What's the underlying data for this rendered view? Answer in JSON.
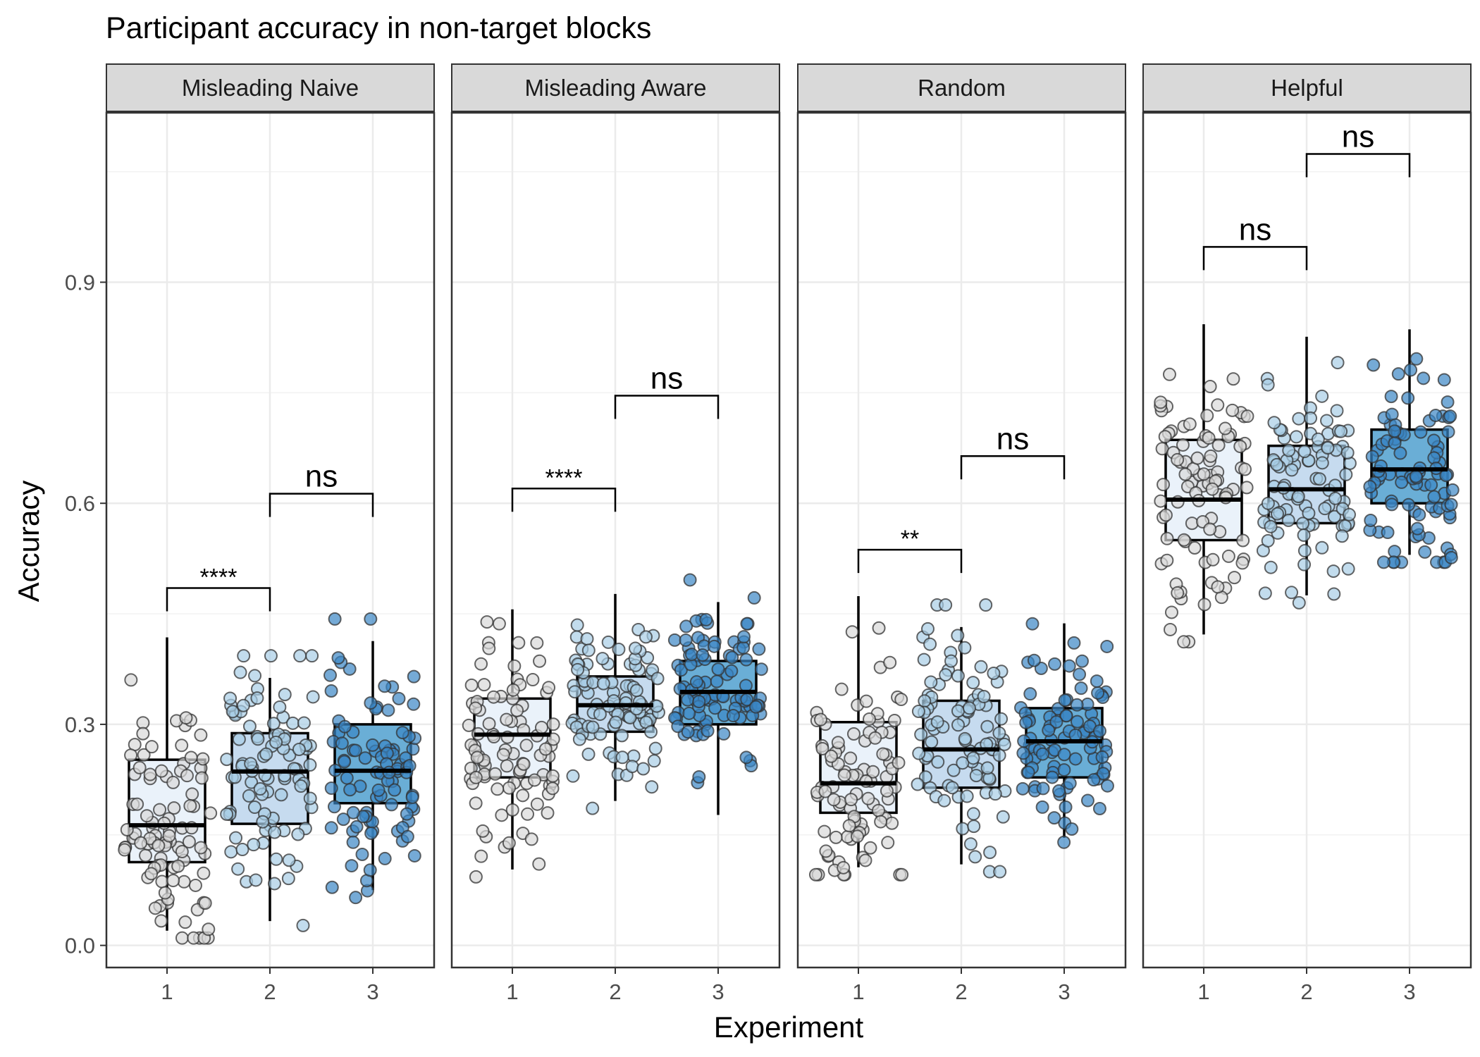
{
  "chart_data": {
    "type": "box",
    "title": "Participant accuracy in non-target blocks",
    "xlabel": "Experiment",
    "ylabel": "Accuracy",
    "ylim": [
      -0.03,
      1.13
    ],
    "yticks": [
      0.0,
      0.3,
      0.6,
      0.9
    ],
    "ytick_labels": [
      "0.0",
      "0.3",
      "0.6",
      "0.9"
    ],
    "categories": [
      "1",
      "2",
      "3"
    ],
    "fill_colors": [
      "#eaf2fa",
      "#c6dbef",
      "#6aaed6"
    ],
    "point_colors": [
      "#d9d9d9",
      "#a8cde6",
      "#3a86c4"
    ],
    "grid": true,
    "panels": [
      {
        "name": "Misleading Naive",
        "boxes": [
          {
            "experiment": "1",
            "q1": 0.113,
            "median": 0.163,
            "q3": 0.252,
            "whisker_low": 0.02,
            "whisker_high": 0.418
          },
          {
            "experiment": "2",
            "q1": 0.165,
            "median": 0.236,
            "q3": 0.288,
            "whisker_low": 0.033,
            "whisker_high": 0.363
          },
          {
            "experiment": "3",
            "q1": 0.193,
            "median": 0.237,
            "q3": 0.3,
            "whisker_low": 0.075,
            "whisker_high": 0.413
          }
        ],
        "comparisons": [
          {
            "from": "1",
            "to": "2",
            "label": "****",
            "y": 0.485
          },
          {
            "from": "2",
            "to": "3",
            "label": "ns",
            "y": 0.613
          }
        ]
      },
      {
        "name": "Misleading Aware",
        "boxes": [
          {
            "experiment": "1",
            "q1": 0.228,
            "median": 0.286,
            "q3": 0.335,
            "whisker_low": 0.103,
            "whisker_high": 0.456
          },
          {
            "experiment": "2",
            "q1": 0.29,
            "median": 0.326,
            "q3": 0.365,
            "whisker_low": 0.196,
            "whisker_high": 0.477
          },
          {
            "experiment": "3",
            "q1": 0.3,
            "median": 0.344,
            "q3": 0.386,
            "whisker_low": 0.177,
            "whisker_high": 0.466
          }
        ],
        "comparisons": [
          {
            "from": "1",
            "to": "2",
            "label": "****",
            "y": 0.62
          },
          {
            "from": "2",
            "to": "3",
            "label": "ns",
            "y": 0.746
          }
        ]
      },
      {
        "name": "Random",
        "boxes": [
          {
            "experiment": "1",
            "q1": 0.18,
            "median": 0.22,
            "q3": 0.303,
            "whisker_low": 0.106,
            "whisker_high": 0.474
          },
          {
            "experiment": "2",
            "q1": 0.214,
            "median": 0.266,
            "q3": 0.332,
            "whisker_low": 0.11,
            "whisker_high": 0.432
          },
          {
            "experiment": "3",
            "q1": 0.228,
            "median": 0.277,
            "q3": 0.322,
            "whisker_low": 0.146,
            "whisker_high": 0.437
          }
        ],
        "comparisons": [
          {
            "from": "1",
            "to": "2",
            "label": "**",
            "y": 0.537
          },
          {
            "from": "2",
            "to": "3",
            "label": "ns",
            "y": 0.664
          }
        ]
      },
      {
        "name": "Helpful",
        "boxes": [
          {
            "experiment": "1",
            "q1": 0.55,
            "median": 0.605,
            "q3": 0.686,
            "whisker_low": 0.422,
            "whisker_high": 0.843
          },
          {
            "experiment": "2",
            "q1": 0.573,
            "median": 0.619,
            "q3": 0.678,
            "whisker_low": 0.475,
            "whisker_high": 0.826
          },
          {
            "experiment": "3",
            "q1": 0.6,
            "median": 0.646,
            "q3": 0.7,
            "whisker_low": 0.53,
            "whisker_high": 0.836
          }
        ],
        "comparisons": [
          {
            "from": "1",
            "to": "2",
            "label": "ns",
            "y": 0.948
          },
          {
            "from": "2",
            "to": "3",
            "label": "ns",
            "y": 1.074
          }
        ]
      }
    ]
  }
}
